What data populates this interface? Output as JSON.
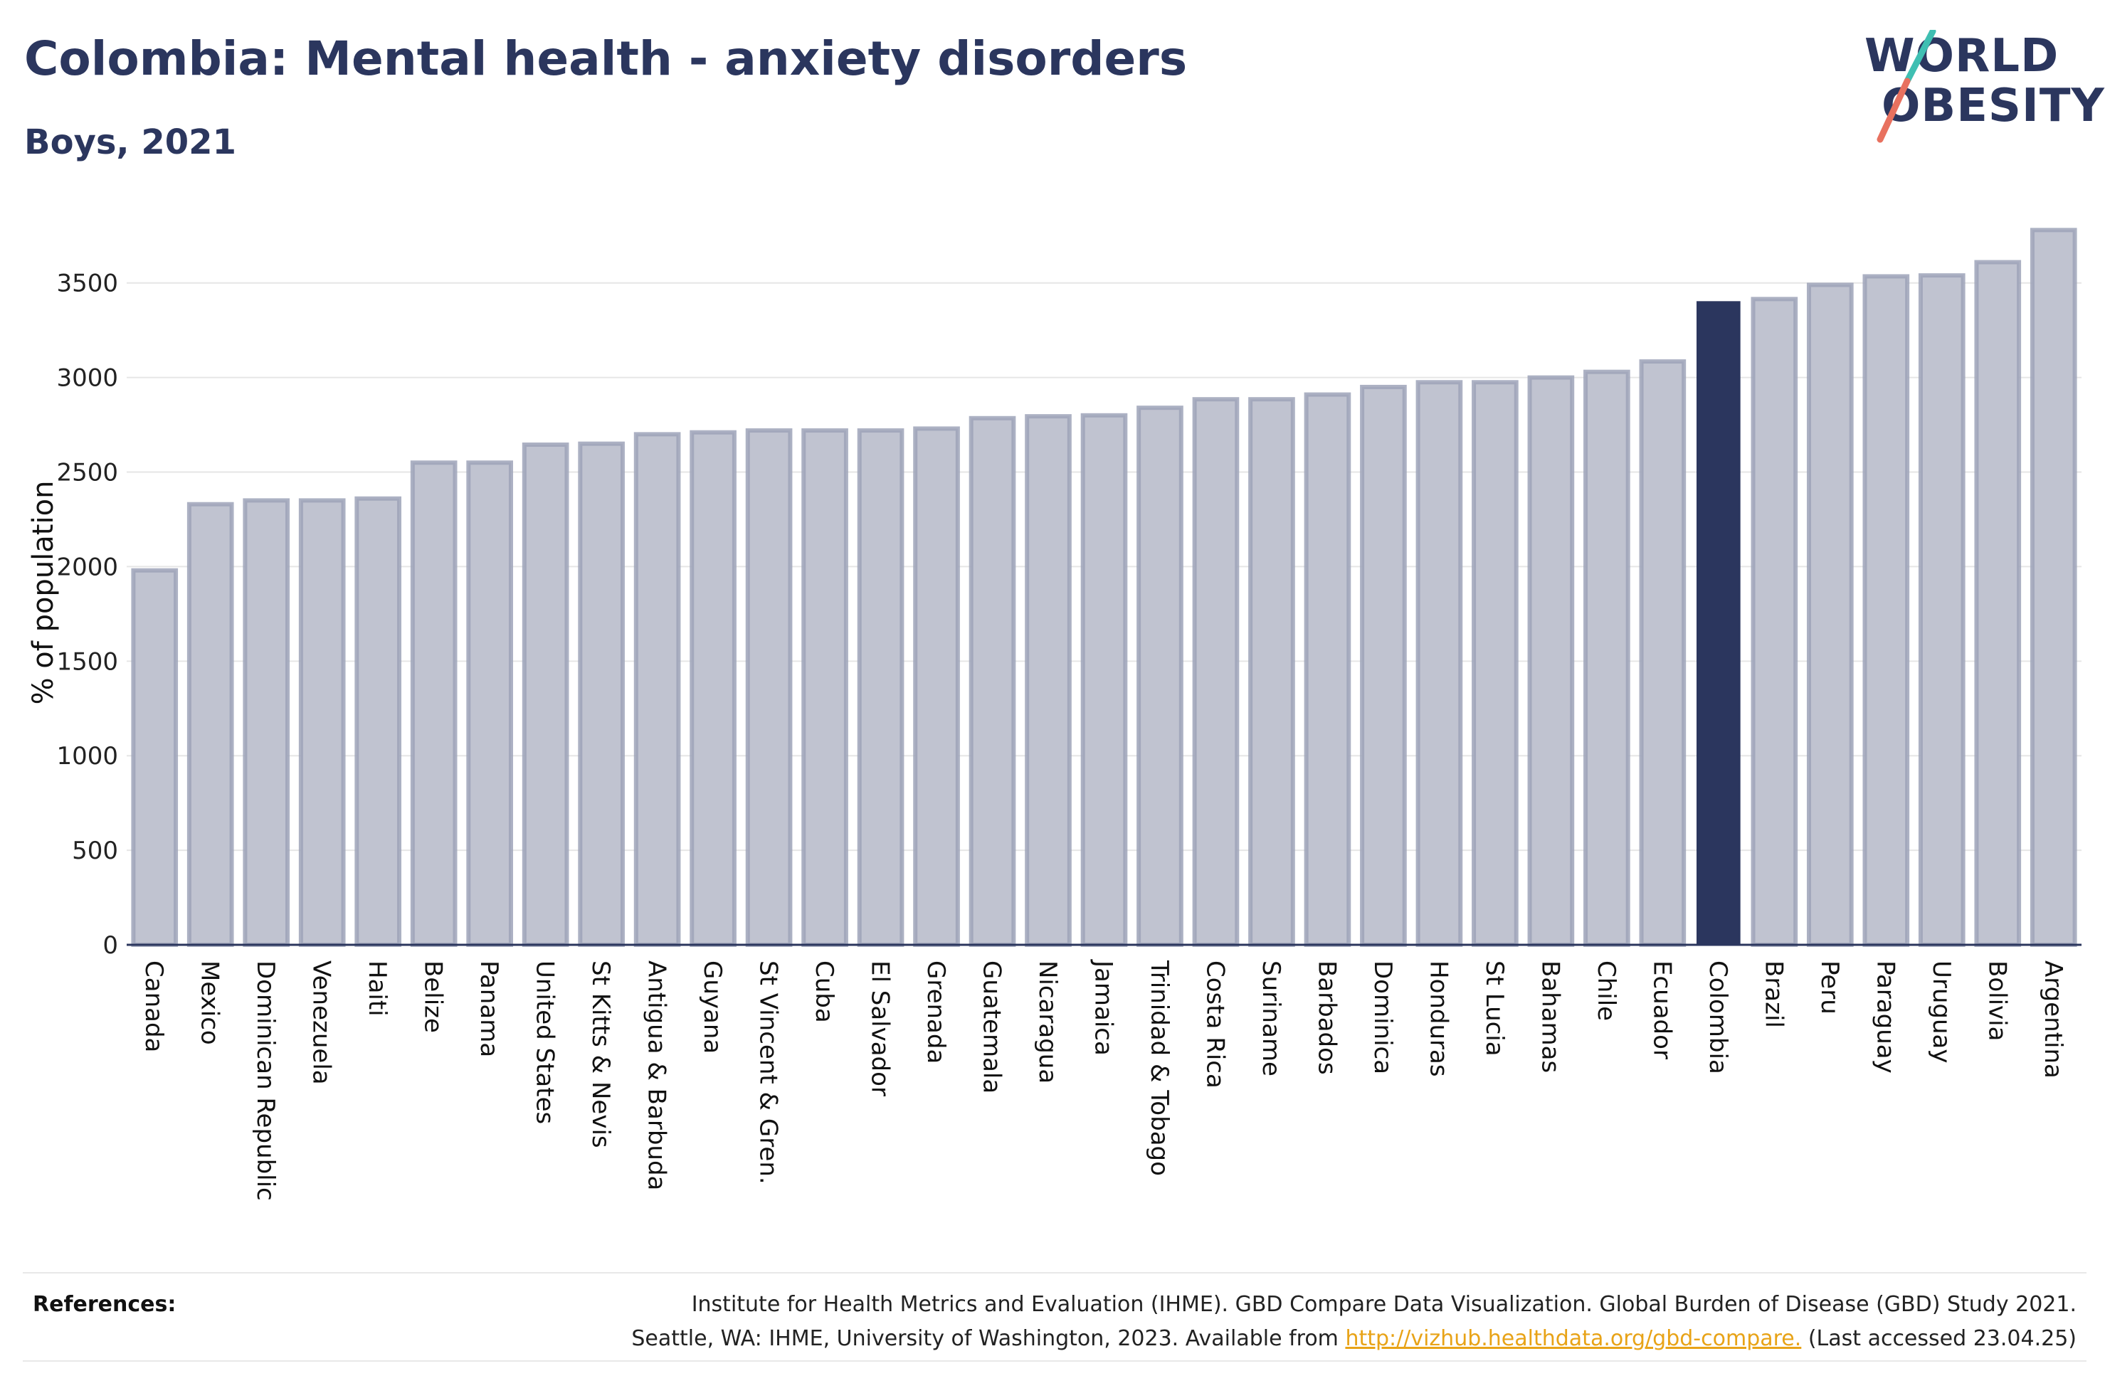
{
  "header": {
    "title": "Colombia: Mental health - anxiety disorders",
    "subtitle": "Boys, 2021"
  },
  "logo": {
    "line1": "WORLD",
    "line2": "OBESITY",
    "colors": {
      "text": "#2b365e",
      "slash_top": "#3fbfb2",
      "slash_bottom": "#e8715f"
    }
  },
  "chart_data": {
    "type": "bar",
    "ylabel": "% of population",
    "ylim": [
      0,
      3800
    ],
    "yticks": [
      0,
      500,
      1000,
      1500,
      2000,
      2500,
      3000,
      3500
    ],
    "grid": true,
    "highlight": "Colombia",
    "colors": {
      "bar": "#c0c3d0",
      "bar_edge": "#9ea3b8",
      "highlight": "#2b365e"
    },
    "categories": [
      "Canada",
      "Mexico",
      "Dominican Republic",
      "Venezuela",
      "Haiti",
      "Belize",
      "Panama",
      "United States",
      "St Kitts & Nevis",
      "Antigua & Barbuda",
      "Guyana",
      "St Vincent & Gren.",
      "Cuba",
      "El Salvador",
      "Grenada",
      "Guatemala",
      "Nicaragua",
      "Jamaica",
      "Trinidad & Tobago",
      "Costa Rica",
      "Suriname",
      "Barbados",
      "Dominica",
      "Honduras",
      "St Lucia",
      "Bahamas",
      "Chile",
      "Ecuador",
      "Colombia",
      "Brazil",
      "Peru",
      "Paraguay",
      "Uruguay",
      "Bolivia",
      "Argentina"
    ],
    "values": [
      1980,
      2330,
      2350,
      2350,
      2360,
      2550,
      2550,
      2645,
      2650,
      2700,
      2710,
      2720,
      2720,
      2720,
      2730,
      2785,
      2795,
      2800,
      2840,
      2885,
      2885,
      2910,
      2950,
      2975,
      2975,
      3000,
      3030,
      3085,
      3400,
      3415,
      3490,
      3535,
      3540,
      3610,
      3780
    ]
  },
  "references": {
    "label": "References:",
    "line1": "Institute for Health Metrics and Evaluation (IHME). GBD Compare Data Visualization. Global Burden of Disease (GBD) Study 2021.",
    "line2_prefix": "Seattle, WA: IHME, University of Washington, 2023. Available from ",
    "link": "http://vizhub.healthdata.org/gbd-compare.",
    "line2_suffix": " (Last accessed 23.04.25)"
  }
}
